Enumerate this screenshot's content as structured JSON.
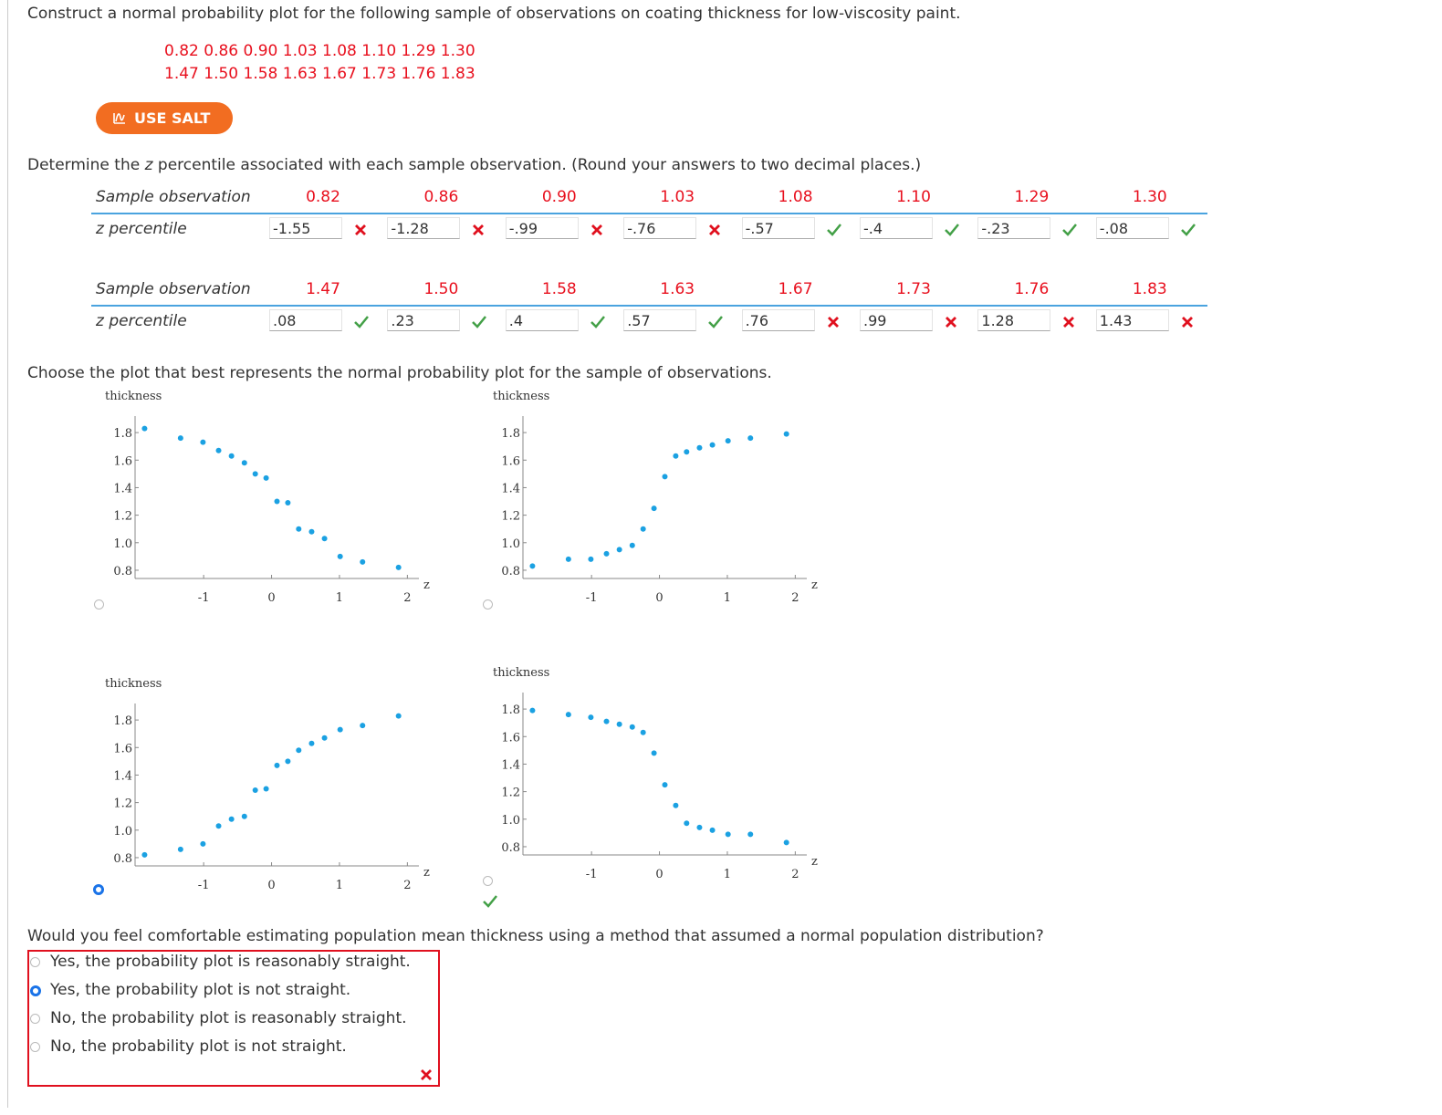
{
  "question1": "Construct a normal probability plot for the following sample of observations on coating thickness for low-viscosity paint.",
  "sample_lines": [
    "0.82 0.86 0.90 1.03 1.08 1.10 1.29 1.30",
    "1.47 1.50 1.58 1.63 1.67 1.73 1.76 1.83"
  ],
  "salt_button": "USE SALT",
  "question2": {
    "before": "Determine the ",
    "variable": "z",
    "after": " percentile associated with each sample observation. (Round your answers to two decimal places.)"
  },
  "tables": [
    {
      "row_labels": [
        "Sample observation",
        "z percentile"
      ],
      "observations": [
        "0.82",
        "0.86",
        "0.90",
        "1.03",
        "1.08",
        "1.10",
        "1.29",
        "1.30"
      ],
      "answers": [
        "-1.55",
        "-1.28",
        "-.99",
        "-.76",
        "-.57",
        "-.4",
        "-.23",
        "-.08"
      ],
      "status": [
        "incorrect",
        "incorrect",
        "incorrect",
        "incorrect",
        "correct",
        "correct",
        "correct",
        "correct"
      ]
    },
    {
      "row_labels": [
        "Sample observation",
        "z percentile"
      ],
      "observations": [
        "1.47",
        "1.50",
        "1.58",
        "1.63",
        "1.67",
        "1.73",
        "1.76",
        "1.83"
      ],
      "answers": [
        ".08",
        ".23",
        ".4",
        ".57",
        ".76",
        ".99",
        "1.28",
        "1.43"
      ],
      "status": [
        "correct",
        "correct",
        "correct",
        "correct",
        "incorrect",
        "incorrect",
        "incorrect",
        "incorrect"
      ]
    }
  ],
  "question3": "Choose the plot that best represents the normal probability plot for the sample of observations.",
  "plot_selected": 2,
  "chart_data": [
    {
      "type": "scatter",
      "y_label": "thickness",
      "x_label": "z",
      "color": "#1ba1e2",
      "x": [
        -1.87,
        -1.34,
        -1.01,
        -0.78,
        -0.59,
        -0.4,
        -0.24,
        -0.08,
        0.08,
        0.24,
        0.4,
        0.59,
        0.78,
        1.01,
        1.34,
        1.87
      ],
      "values": [
        1.83,
        1.76,
        1.73,
        1.67,
        1.63,
        1.58,
        1.5,
        1.47,
        1.3,
        1.29,
        1.1,
        1.08,
        1.03,
        0.9,
        0.86,
        0.82
      ],
      "xlim": [
        -2.01,
        2.17
      ],
      "ylim": [
        0.74,
        1.92
      ],
      "xticks": [
        -1,
        0,
        1,
        2
      ],
      "yticks": [
        0.8,
        {
          "value": 1,
          "label": "1.0"
        },
        1.2,
        1.4,
        1.6,
        1.8
      ]
    },
    {
      "type": "scatter",
      "y_label": "thickness",
      "x_label": "z",
      "color": "#1ba1e2",
      "x": [
        -1.87,
        -1.34,
        -1.01,
        -0.78,
        -0.59,
        -0.4,
        -0.24,
        -0.08,
        0.08,
        0.24,
        0.4,
        0.59,
        0.78,
        1.01,
        1.34,
        1.87
      ],
      "values": [
        0.83,
        0.88,
        0.88,
        0.92,
        0.95,
        0.98,
        1.1,
        1.25,
        1.48,
        1.63,
        1.66,
        1.69,
        1.71,
        1.74,
        1.76,
        1.79
      ],
      "xlim": [
        -2.01,
        2.17
      ],
      "ylim": [
        0.74,
        1.92
      ],
      "xticks": [
        -1,
        0,
        1,
        2
      ],
      "yticks": [
        0.8,
        {
          "value": 1,
          "label": "1.0"
        },
        1.2,
        1.4,
        1.6,
        1.8
      ]
    },
    {
      "type": "scatter",
      "y_label": "thickness",
      "x_label": "z",
      "color": "#1ba1e2",
      "x": [
        -1.87,
        -1.34,
        -1.01,
        -0.78,
        -0.59,
        -0.4,
        -0.24,
        -0.08,
        0.08,
        0.24,
        0.4,
        0.59,
        0.78,
        1.01,
        1.34,
        1.87
      ],
      "values": [
        0.82,
        0.86,
        0.9,
        1.03,
        1.08,
        1.1,
        1.29,
        1.3,
        1.47,
        1.5,
        1.58,
        1.63,
        1.67,
        1.73,
        1.76,
        1.83
      ],
      "xlim": [
        -2.01,
        2.17
      ],
      "ylim": [
        0.74,
        1.92
      ],
      "xticks": [
        -1,
        0,
        1,
        2
      ],
      "yticks": [
        0.8,
        {
          "value": 1,
          "label": "1.0"
        },
        1.2,
        1.4,
        1.6,
        1.8
      ]
    },
    {
      "type": "scatter",
      "y_label": "thickness",
      "x_label": "z",
      "color": "#1ba1e2",
      "x": [
        -1.87,
        -1.34,
        -1.01,
        -0.78,
        -0.59,
        -0.4,
        -0.24,
        -0.08,
        0.08,
        0.24,
        0.4,
        0.59,
        0.78,
        1.01,
        1.34,
        1.87
      ],
      "values": [
        1.79,
        1.76,
        1.74,
        1.71,
        1.69,
        1.67,
        1.63,
        1.48,
        1.25,
        1.1,
        0.97,
        0.94,
        0.92,
        0.89,
        0.89,
        0.83
      ],
      "xlim": [
        -2.01,
        2.17
      ],
      "ylim": [
        0.74,
        1.92
      ],
      "xticks": [
        -1,
        0,
        1,
        2
      ],
      "yticks": [
        0.8,
        {
          "value": 1,
          "label": "1.0"
        },
        1.2,
        1.4,
        1.6,
        1.8
      ]
    }
  ],
  "question4": "Would you feel comfortable estimating population mean thickness using a method that assumed a normal population distribution?",
  "options": [
    "Yes, the probability plot is reasonably straight.",
    "Yes, the probability plot is not straight.",
    "No, the probability plot is reasonably straight.",
    "No, the probability plot is not straight."
  ],
  "option_selected": 1,
  "option_status": "incorrect"
}
